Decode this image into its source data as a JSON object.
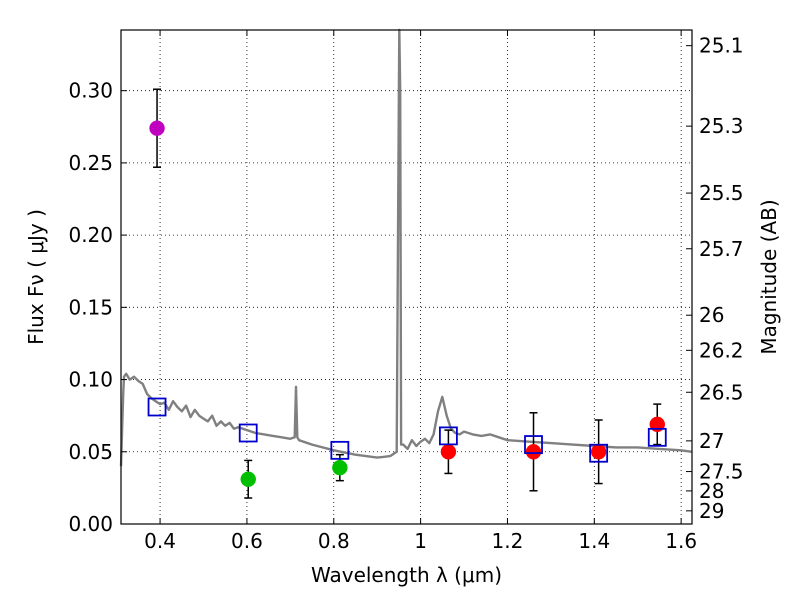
{
  "chart_data": {
    "type": "scatter",
    "xlabel": "Wavelength  λ (μm)",
    "ylabel": "Flux  Fν  ( μJy )",
    "y2label": "Magnitude (AB)",
    "xlim": [
      0.31,
      1.625
    ],
    "ylim": [
      0.0,
      0.342
    ],
    "xticks": [
      0.4,
      0.6,
      0.8,
      1.0,
      1.2,
      1.4,
      1.6
    ],
    "xtick_labels": [
      "0.4",
      "0.6",
      "0.8",
      "1",
      "1.2",
      "1.4",
      "1.6"
    ],
    "yticks": [
      0.0,
      0.05,
      0.1,
      0.15,
      0.2,
      0.25,
      0.3
    ],
    "ytick_labels": [
      "0.00",
      "0.05",
      "0.10",
      "0.15",
      "0.20",
      "0.25",
      "0.30"
    ],
    "mag_ticks": [
      {
        "label": "25.1",
        "value": 25.1
      },
      {
        "label": "25.3",
        "value": 25.3
      },
      {
        "label": "25.5",
        "value": 25.5
      },
      {
        "label": "25.7",
        "value": 25.7
      },
      {
        "label": "26",
        "value": 26.0
      },
      {
        "label": "26.2",
        "value": 26.2
      },
      {
        "label": "26.5",
        "value": 26.5
      },
      {
        "label": "27",
        "value": 27.0
      },
      {
        "label": "27.5",
        "value": 27.5
      },
      {
        "label": "28",
        "value": 28.0
      },
      {
        "label": "29",
        "value": 29.0
      }
    ],
    "grid": true,
    "colors": {
      "violet": "#bf00bf",
      "green": "#00bf00",
      "red": "#ff0000",
      "model_box": "#0000cc",
      "sed_line": "#808080"
    },
    "series": [
      {
        "name": "violet-point",
        "color_key": "violet",
        "points": [
          {
            "x": 0.393,
            "y": 0.274,
            "err": 0.027
          }
        ]
      },
      {
        "name": "green-points",
        "color_key": "green",
        "points": [
          {
            "x": 0.603,
            "y": 0.031,
            "err": 0.013
          },
          {
            "x": 0.814,
            "y": 0.039,
            "err": 0.009
          }
        ]
      },
      {
        "name": "red-points",
        "color_key": "red",
        "points": [
          {
            "x": 1.064,
            "y": 0.05,
            "err": 0.015
          },
          {
            "x": 1.26,
            "y": 0.05,
            "err": 0.027
          },
          {
            "x": 1.41,
            "y": 0.05,
            "err": 0.022
          },
          {
            "x": 1.545,
            "y": 0.069,
            "err": 0.014
          }
        ]
      },
      {
        "name": "model-boxes",
        "color_key": "model_box",
        "marker": "square",
        "points": [
          {
            "x": 0.393,
            "y": 0.081
          },
          {
            "x": 0.603,
            "y": 0.063
          },
          {
            "x": 0.814,
            "y": 0.051
          },
          {
            "x": 1.064,
            "y": 0.061
          },
          {
            "x": 1.26,
            "y": 0.055
          },
          {
            "x": 1.41,
            "y": 0.049
          },
          {
            "x": 1.545,
            "y": 0.06
          }
        ]
      }
    ],
    "sed_model": {
      "name": "SED model spectrum",
      "x": [
        0.31,
        0.315,
        0.317,
        0.322,
        0.33,
        0.34,
        0.35,
        0.36,
        0.37,
        0.38,
        0.39,
        0.4,
        0.41,
        0.42,
        0.43,
        0.44,
        0.45,
        0.46,
        0.47,
        0.48,
        0.49,
        0.5,
        0.51,
        0.52,
        0.53,
        0.54,
        0.55,
        0.56,
        0.57,
        0.58,
        0.6,
        0.62,
        0.64,
        0.66,
        0.68,
        0.7,
        0.71,
        0.713,
        0.716,
        0.72,
        0.75,
        0.8,
        0.85,
        0.9,
        0.93,
        0.945,
        0.95,
        0.951,
        0.953,
        0.955,
        0.96,
        0.97,
        0.98,
        0.99,
        1.0,
        1.01,
        1.02,
        1.03,
        1.04,
        1.05,
        1.06,
        1.07,
        1.08,
        1.09,
        1.1,
        1.12,
        1.14,
        1.16,
        1.18,
        1.2,
        1.25,
        1.3,
        1.35,
        1.4,
        1.45,
        1.5,
        1.55,
        1.6,
        1.625
      ],
      "y": [
        0.04,
        0.09,
        0.102,
        0.104,
        0.1,
        0.102,
        0.099,
        0.097,
        0.09,
        0.087,
        0.085,
        0.083,
        0.084,
        0.079,
        0.085,
        0.081,
        0.078,
        0.082,
        0.074,
        0.079,
        0.075,
        0.073,
        0.071,
        0.075,
        0.068,
        0.071,
        0.068,
        0.07,
        0.066,
        0.067,
        0.065,
        0.063,
        0.062,
        0.061,
        0.06,
        0.059,
        0.06,
        0.095,
        0.06,
        0.058,
        0.055,
        0.051,
        0.048,
        0.046,
        0.047,
        0.05,
        0.3,
        0.342,
        0.3,
        0.055,
        0.055,
        0.052,
        0.058,
        0.054,
        0.057,
        0.059,
        0.056,
        0.062,
        0.078,
        0.088,
        0.075,
        0.066,
        0.063,
        0.062,
        0.064,
        0.062,
        0.061,
        0.062,
        0.06,
        0.058,
        0.057,
        0.056,
        0.055,
        0.054,
        0.053,
        0.053,
        0.052,
        0.051,
        0.05
      ]
    }
  }
}
